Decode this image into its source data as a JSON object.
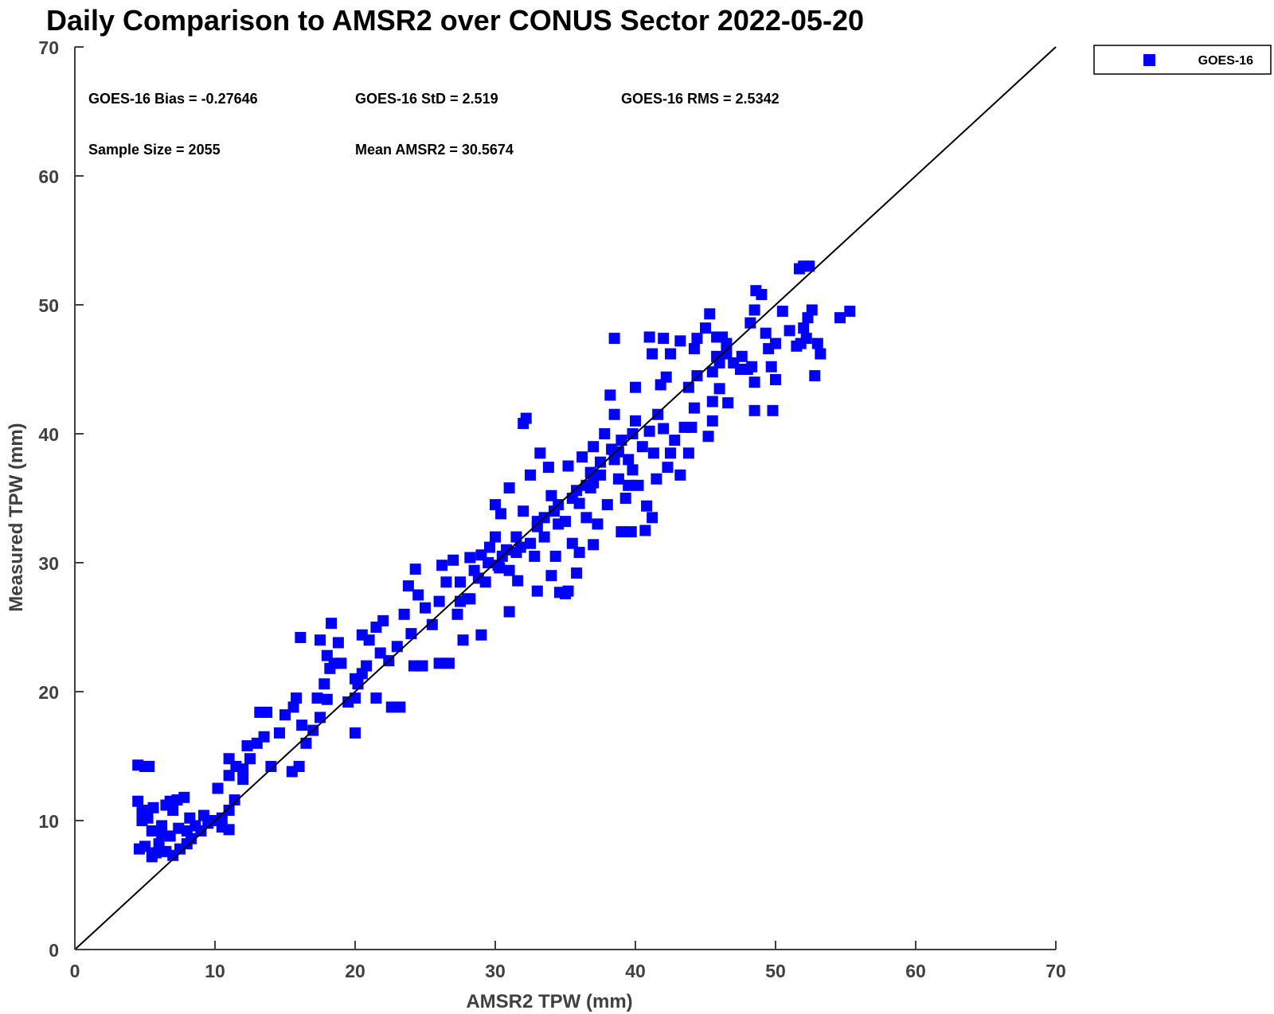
{
  "chart_data": {
    "type": "scatter",
    "title": "Daily Comparison to AMSR2 over CONUS Sector 2022-05-20",
    "xlabel": "AMSR2 TPW (mm)",
    "ylabel": "Measured TPW (mm)",
    "xlim": [
      0,
      70
    ],
    "ylim": [
      0,
      70
    ],
    "xticks": [
      "0",
      "10",
      "20",
      "30",
      "40",
      "50",
      "60",
      "70"
    ],
    "yticks": [
      "0",
      "10",
      "20",
      "30",
      "40",
      "50",
      "60",
      "70"
    ],
    "grid": false,
    "legend_position": "top-right, outside plot",
    "reference_line": "1:1 line from (0,0) to (70,70)",
    "marker": "filled-square",
    "colors": {
      "series": "#0000ff",
      "reference_line": "#000000",
      "axes": "#404040"
    },
    "annotations": {
      "bias": "GOES-16 Bias = -0.27646",
      "std": "GOES-16 StD = 2.519",
      "rms": "GOES-16 RMS = 2.5342",
      "sample": "Sample Size = 2055",
      "mean": "Mean AMSR2 = 30.5674"
    },
    "series": [
      {
        "name": "GOES-16",
        "points": [
          [
            4.5,
            14.3
          ],
          [
            5.0,
            14.2
          ],
          [
            5.3,
            14.2
          ],
          [
            4.5,
            11.5
          ],
          [
            4.8,
            10.8
          ],
          [
            5.2,
            10.2
          ],
          [
            4.8,
            10.0
          ],
          [
            4.6,
            7.8
          ],
          [
            5.0,
            8.0
          ],
          [
            5.5,
            7.2
          ],
          [
            5.8,
            7.5
          ],
          [
            6.0,
            8.2
          ],
          [
            5.5,
            9.2
          ],
          [
            6.2,
            9.0
          ],
          [
            6.5,
            11.2
          ],
          [
            5.6,
            11.0
          ],
          [
            6.8,
            11.5
          ],
          [
            7.0,
            10.8
          ],
          [
            7.3,
            11.6
          ],
          [
            7.8,
            11.8
          ],
          [
            6.5,
            7.6
          ],
          [
            7.0,
            7.3
          ],
          [
            7.5,
            7.8
          ],
          [
            8.0,
            8.2
          ],
          [
            8.3,
            8.6
          ],
          [
            6.2,
            9.6
          ],
          [
            6.8,
            8.8
          ],
          [
            7.4,
            9.4
          ],
          [
            8.0,
            9.2
          ],
          [
            8.6,
            9.6
          ],
          [
            9.0,
            9.2
          ],
          [
            9.5,
            9.8
          ],
          [
            10.0,
            10.0
          ],
          [
            8.2,
            10.2
          ],
          [
            9.2,
            10.4
          ],
          [
            10.5,
            10.2
          ],
          [
            11.0,
            10.8
          ],
          [
            11.4,
            11.6
          ],
          [
            11.0,
            9.3
          ],
          [
            10.5,
            9.5
          ],
          [
            10.2,
            12.5
          ],
          [
            11.0,
            13.5
          ],
          [
            11.5,
            14.2
          ],
          [
            11.0,
            14.8
          ],
          [
            12.0,
            14.0
          ],
          [
            12.5,
            14.8
          ],
          [
            12.0,
            13.2
          ],
          [
            12.3,
            15.8
          ],
          [
            13.0,
            16.0
          ],
          [
            13.5,
            16.5
          ],
          [
            13.2,
            18.4
          ],
          [
            13.7,
            18.4
          ],
          [
            14.0,
            14.2
          ],
          [
            14.6,
            16.8
          ],
          [
            15.0,
            18.2
          ],
          [
            15.6,
            18.8
          ],
          [
            15.5,
            13.8
          ],
          [
            16.0,
            14.2
          ],
          [
            15.8,
            19.5
          ],
          [
            16.2,
            17.4
          ],
          [
            17.0,
            17.0
          ],
          [
            16.5,
            16.0
          ],
          [
            17.5,
            18.0
          ],
          [
            18.0,
            19.4
          ],
          [
            17.3,
            19.5
          ],
          [
            17.8,
            20.6
          ],
          [
            18.2,
            21.8
          ],
          [
            18.5,
            22.2
          ],
          [
            18.0,
            22.8
          ],
          [
            17.5,
            24.0
          ],
          [
            16.1,
            24.2
          ],
          [
            18.3,
            25.3
          ],
          [
            18.8,
            23.8
          ],
          [
            19.0,
            22.2
          ],
          [
            19.5,
            19.2
          ],
          [
            20.0,
            19.5
          ],
          [
            20.2,
            20.6
          ],
          [
            20.5,
            21.4
          ],
          [
            20.8,
            22.0
          ],
          [
            20.0,
            21.0
          ],
          [
            20.0,
            16.8
          ],
          [
            20.5,
            24.4
          ],
          [
            21.0,
            24.0
          ],
          [
            21.5,
            25.0
          ],
          [
            22.0,
            25.5
          ],
          [
            21.8,
            23.0
          ],
          [
            22.4,
            22.4
          ],
          [
            22.6,
            18.8
          ],
          [
            23.2,
            18.8
          ],
          [
            21.5,
            19.5
          ],
          [
            23.0,
            23.5
          ],
          [
            23.5,
            26.0
          ],
          [
            24.0,
            24.5
          ],
          [
            24.5,
            27.5
          ],
          [
            23.8,
            28.2
          ],
          [
            24.3,
            29.5
          ],
          [
            24.2,
            22.0
          ],
          [
            24.8,
            22.0
          ],
          [
            25.0,
            26.5
          ],
          [
            25.5,
            25.2
          ],
          [
            26.0,
            27.0
          ],
          [
            26.5,
            28.5
          ],
          [
            26.0,
            22.2
          ],
          [
            26.7,
            22.2
          ],
          [
            26.2,
            29.8
          ],
          [
            27.0,
            30.2
          ],
          [
            27.5,
            28.5
          ],
          [
            27.3,
            26.0
          ],
          [
            27.7,
            24.0
          ],
          [
            28.0,
            27.2
          ],
          [
            28.5,
            29.4
          ],
          [
            28.2,
            30.4
          ],
          [
            29.0,
            30.6
          ],
          [
            29.3,
            28.5
          ],
          [
            29.0,
            24.4
          ],
          [
            29.6,
            31.2
          ],
          [
            30.0,
            32.0
          ],
          [
            30.3,
            29.6
          ],
          [
            30.8,
            31.0
          ],
          [
            30.0,
            34.5
          ],
          [
            30.4,
            33.8
          ],
          [
            31.0,
            35.8
          ],
          [
            31.5,
            32.0
          ],
          [
            31.0,
            29.4
          ],
          [
            31.6,
            28.6
          ],
          [
            32.0,
            34.0
          ],
          [
            32.5,
            36.8
          ],
          [
            32.8,
            30.5
          ],
          [
            33.0,
            33.2
          ],
          [
            32.2,
            41.2
          ],
          [
            32.0,
            40.8
          ],
          [
            33.2,
            38.5
          ],
          [
            33.5,
            32.0
          ],
          [
            34.0,
            35.2
          ],
          [
            33.8,
            37.4
          ],
          [
            34.3,
            30.5
          ],
          [
            34.5,
            34.5
          ],
          [
            35.0,
            33.2
          ],
          [
            35.2,
            37.5
          ],
          [
            35.5,
            31.5
          ],
          [
            35.0,
            27.6
          ],
          [
            35.8,
            29.2
          ],
          [
            36.0,
            34.6
          ],
          [
            36.2,
            38.2
          ],
          [
            36.5,
            33.5
          ],
          [
            36.8,
            35.8
          ],
          [
            37.0,
            39.0
          ],
          [
            37.3,
            33.0
          ],
          [
            37.5,
            37.8
          ],
          [
            37.0,
            31.4
          ],
          [
            37.8,
            40.0
          ],
          [
            38.0,
            34.5
          ],
          [
            38.3,
            38.8
          ],
          [
            38.5,
            41.5
          ],
          [
            38.2,
            43.0
          ],
          [
            38.8,
            36.5
          ],
          [
            39.0,
            39.5
          ],
          [
            39.3,
            35.0
          ],
          [
            39.5,
            38.0
          ],
          [
            39.0,
            32.4
          ],
          [
            39.7,
            32.4
          ],
          [
            39.8,
            37.2
          ],
          [
            40.0,
            41.0
          ],
          [
            40.2,
            36.0
          ],
          [
            40.5,
            39.0
          ],
          [
            40.8,
            34.4
          ],
          [
            41.0,
            40.2
          ],
          [
            40.7,
            32.5
          ],
          [
            41.2,
            33.5
          ],
          [
            41.3,
            38.5
          ],
          [
            41.5,
            36.5
          ],
          [
            41.6,
            41.5
          ],
          [
            42.0,
            40.4
          ],
          [
            41.8,
            43.8
          ],
          [
            42.3,
            37.4
          ],
          [
            42.5,
            38.5
          ],
          [
            42.2,
            44.4
          ],
          [
            42.8,
            39.5
          ],
          [
            43.2,
            36.8
          ],
          [
            43.5,
            40.5
          ],
          [
            43.8,
            38.5
          ],
          [
            44.0,
            40.5
          ],
          [
            44.2,
            42.0
          ],
          [
            43.8,
            43.6
          ],
          [
            44.4,
            44.5
          ],
          [
            45.2,
            39.8
          ],
          [
            45.5,
            42.5
          ],
          [
            45.5,
            41.0
          ],
          [
            45.5,
            44.8
          ],
          [
            45.8,
            46.0
          ],
          [
            46.0,
            45.5
          ],
          [
            46.5,
            46.2
          ],
          [
            46.0,
            43.5
          ],
          [
            46.6,
            42.4
          ],
          [
            46.2,
            47.5
          ],
          [
            47.0,
            45.5
          ],
          [
            47.5,
            45.0
          ],
          [
            47.6,
            46.0
          ],
          [
            48.0,
            45.0
          ],
          [
            48.3,
            45.2
          ],
          [
            48.5,
            44.0
          ],
          [
            48.5,
            41.8
          ],
          [
            48.2,
            48.6
          ],
          [
            48.5,
            49.6
          ],
          [
            49.0,
            50.8
          ],
          [
            48.6,
            51.1
          ],
          [
            49.3,
            47.8
          ],
          [
            49.5,
            46.6
          ],
          [
            49.8,
            41.8
          ],
          [
            49.7,
            45.2
          ],
          [
            50.0,
            44.2
          ],
          [
            50.0,
            47.0
          ],
          [
            50.5,
            49.5
          ],
          [
            51.0,
            48.0
          ],
          [
            51.5,
            46.8
          ],
          [
            51.8,
            47.0
          ],
          [
            52.0,
            48.2
          ],
          [
            52.3,
            49.0
          ],
          [
            52.6,
            49.6
          ],
          [
            51.7,
            52.8
          ],
          [
            52.0,
            53.0
          ],
          [
            52.4,
            53.0
          ],
          [
            52.2,
            47.4
          ],
          [
            53.0,
            47.0
          ],
          [
            53.2,
            46.2
          ],
          [
            52.8,
            44.5
          ],
          [
            54.6,
            49.0
          ],
          [
            55.3,
            49.5
          ],
          [
            40.0,
            43.6
          ],
          [
            41.0,
            47.5
          ],
          [
            42.0,
            47.4
          ],
          [
            43.2,
            47.2
          ],
          [
            44.4,
            47.4
          ],
          [
            45.0,
            48.2
          ],
          [
            45.3,
            49.3
          ],
          [
            45.8,
            47.5
          ],
          [
            46.5,
            47.0
          ],
          [
            42.5,
            46.2
          ],
          [
            44.2,
            46.6
          ],
          [
            41.2,
            46.2
          ],
          [
            38.5,
            47.4
          ],
          [
            39.5,
            36.0
          ],
          [
            37.0,
            36.2
          ],
          [
            36.0,
            30.8
          ],
          [
            34.0,
            29.0
          ],
          [
            33.0,
            27.8
          ],
          [
            34.6,
            27.7
          ],
          [
            35.2,
            27.8
          ],
          [
            31.0,
            26.2
          ],
          [
            28.2,
            27.2
          ],
          [
            29.5,
            30.0
          ],
          [
            30.5,
            30.5
          ],
          [
            31.5,
            30.8
          ],
          [
            32.5,
            31.5
          ],
          [
            33.5,
            33.5
          ],
          [
            34.5,
            33.0
          ],
          [
            35.5,
            35.0
          ],
          [
            36.5,
            36.0
          ],
          [
            37.5,
            36.8
          ],
          [
            38.5,
            38.0
          ],
          [
            27.5,
            27.0
          ],
          [
            28.8,
            28.8
          ],
          [
            30.2,
            29.8
          ],
          [
            31.8,
            31.2
          ],
          [
            33.0,
            32.8
          ],
          [
            34.2,
            34.0
          ],
          [
            35.8,
            35.6
          ],
          [
            36.8,
            37.0
          ],
          [
            38.8,
            38.6
          ],
          [
            39.8,
            40.0
          ]
        ]
      }
    ]
  },
  "legend": {
    "label": "GOES-16"
  }
}
